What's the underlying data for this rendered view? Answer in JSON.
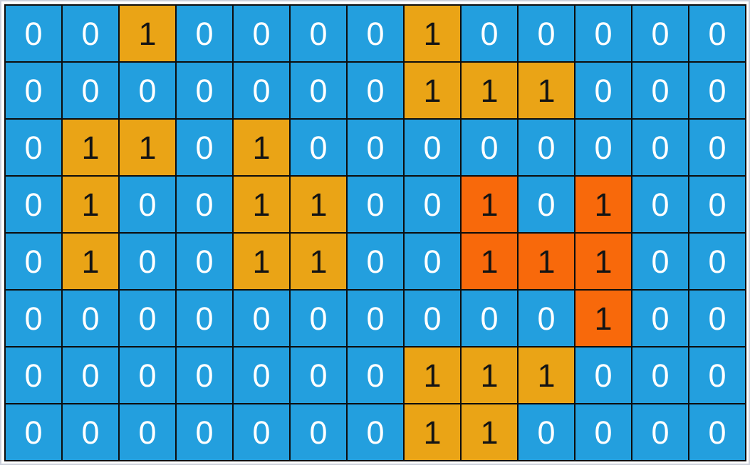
{
  "page": {
    "background": "#ffffff",
    "frame_border": "#ccd1dc",
    "grid_line_color": "#0d0d0d"
  },
  "palette": {
    "0": {
      "bg": "#239fde",
      "text": "#ffffff"
    },
    "1a": {
      "bg": "#eaa416",
      "text": "#141414"
    },
    "1o": {
      "bg": "#f8690b",
      "text": "#141414"
    }
  },
  "grid": {
    "rows": 8,
    "cols": 13,
    "cells": [
      [
        "0",
        "0",
        "1a",
        "0",
        "0",
        "0",
        "0",
        "1a",
        "0",
        "0",
        "0",
        "0",
        "0"
      ],
      [
        "0",
        "0",
        "0",
        "0",
        "0",
        "0",
        "0",
        "1a",
        "1a",
        "1a",
        "0",
        "0",
        "0"
      ],
      [
        "0",
        "1a",
        "1a",
        "0",
        "1a",
        "0",
        "0",
        "0",
        "0",
        "0",
        "0",
        "0",
        "0"
      ],
      [
        "0",
        "1a",
        "0",
        "0",
        "1a",
        "1a",
        "0",
        "0",
        "1o",
        "0",
        "1o",
        "0",
        "0"
      ],
      [
        "0",
        "1a",
        "0",
        "0",
        "1a",
        "1a",
        "0",
        "0",
        "1o",
        "1o",
        "1o",
        "0",
        "0"
      ],
      [
        "0",
        "0",
        "0",
        "0",
        "0",
        "0",
        "0",
        "0",
        "0",
        "0",
        "1o",
        "0",
        "0"
      ],
      [
        "0",
        "0",
        "0",
        "0",
        "0",
        "0",
        "0",
        "1a",
        "1a",
        "1a",
        "0",
        "0",
        "0"
      ],
      [
        "0",
        "0",
        "0",
        "0",
        "0",
        "0",
        "0",
        "1a",
        "1a",
        "0",
        "0",
        "0",
        "0"
      ]
    ]
  }
}
